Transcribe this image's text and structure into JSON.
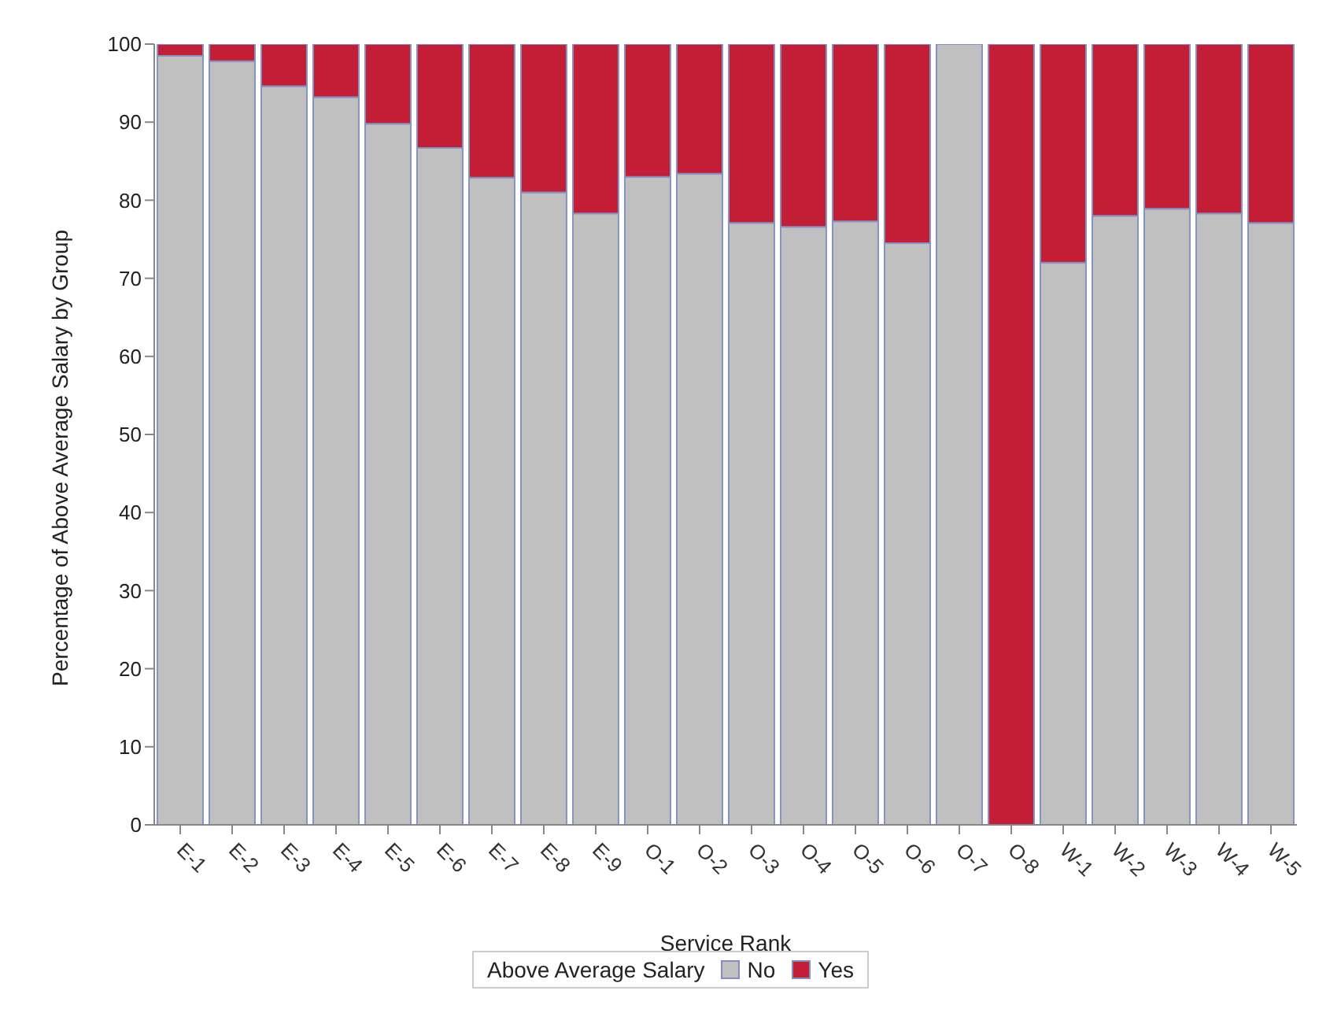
{
  "chart_data": {
    "type": "bar",
    "stacked": true,
    "xlabel": "Service Rank",
    "ylabel": "Percentage of Above Average Salary by Group",
    "legend_title": "Above Average Salary",
    "legend": "bottom",
    "grid": false,
    "categories": [
      "E-1",
      "E-2",
      "E-3",
      "E-4",
      "E-5",
      "E-6",
      "E-7",
      "E-8",
      "E-9",
      "O-1",
      "O-2",
      "O-3",
      "O-4",
      "O-5",
      "O-6",
      "O-7",
      "O-8",
      "W-1",
      "W-2",
      "W-3",
      "W-4",
      "W-5"
    ],
    "series": [
      {
        "name": "No",
        "color": "#c0c0c0",
        "values": [
          98.5,
          97.8,
          94.6,
          93.2,
          89.8,
          86.7,
          82.9,
          81,
          78.3,
          83,
          83.4,
          77.1,
          76.6,
          77.3,
          74.5,
          100,
          0,
          72,
          78,
          78.9,
          78.3,
          77.1
        ]
      },
      {
        "name": "Yes",
        "color": "#c31e36",
        "values": [
          1.5,
          2.2,
          5.4,
          6.8,
          10.2,
          13.3,
          17.1,
          19,
          21.7,
          17,
          16.6,
          22.9,
          23.4,
          22.7,
          25.5,
          0,
          100,
          28,
          22,
          21.1,
          21.7,
          22.9
        ]
      }
    ],
    "ylim": [
      0,
      100
    ],
    "yticks": [
      0,
      10,
      20,
      30,
      40,
      50,
      60,
      70,
      80,
      90,
      100
    ]
  }
}
